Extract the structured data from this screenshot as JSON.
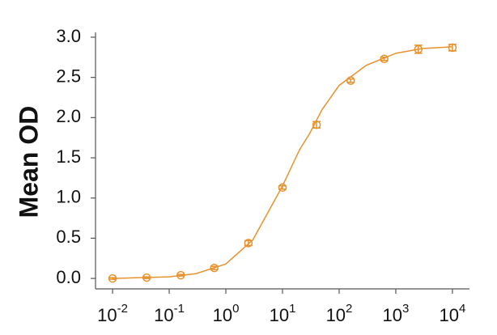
{
  "chart_data": {
    "type": "scatter",
    "ylabel": "Mean OD",
    "x": [
      0.01,
      0.04,
      0.16,
      0.625,
      2.5,
      10,
      40,
      160,
      625,
      2500,
      10000
    ],
    "values": [
      0.0,
      0.01,
      0.04,
      0.13,
      0.44,
      1.13,
      1.91,
      2.46,
      2.73,
      2.85,
      2.87
    ],
    "errors": [
      0.01,
      0.01,
      0.01,
      0.02,
      0.03,
      0.02,
      0.04,
      0.02,
      0.02,
      0.05,
      0.04
    ],
    "curve": {
      "x": [
        0.01,
        0.03,
        0.1,
        0.3,
        1,
        3,
        10,
        20,
        30,
        50,
        100,
        300,
        1000,
        3000,
        10000
      ],
      "values": [
        0.0,
        0.01,
        0.02,
        0.06,
        0.18,
        0.48,
        1.15,
        1.6,
        1.8,
        2.1,
        2.4,
        2.65,
        2.8,
        2.86,
        2.88
      ]
    },
    "color": "#e8922e",
    "xscale": "log",
    "xlim": [
      0.005,
      20000
    ],
    "ylim": [
      -0.13,
      3.06
    ],
    "xticks": [
      {
        "value": 0.01,
        "base": "10",
        "exponent": "-2"
      },
      {
        "value": 0.1,
        "base": "10",
        "exponent": "-1"
      },
      {
        "value": 1,
        "base": "10",
        "exponent": "0"
      },
      {
        "value": 10,
        "base": "10",
        "exponent": "1"
      },
      {
        "value": 100,
        "base": "10",
        "exponent": "2"
      },
      {
        "value": 1000,
        "base": "10",
        "exponent": "3"
      },
      {
        "value": 10000,
        "base": "10",
        "exponent": "4"
      }
    ],
    "yticks": [
      {
        "value": 0,
        "label": "0.0"
      },
      {
        "value": 0.5,
        "label": "0.5"
      },
      {
        "value": 1,
        "label": "1.0"
      },
      {
        "value": 1.5,
        "label": "1.5"
      },
      {
        "value": 2,
        "label": "2.0"
      },
      {
        "value": 2.5,
        "label": "2.5"
      },
      {
        "value": 3,
        "label": "3.0"
      }
    ]
  }
}
